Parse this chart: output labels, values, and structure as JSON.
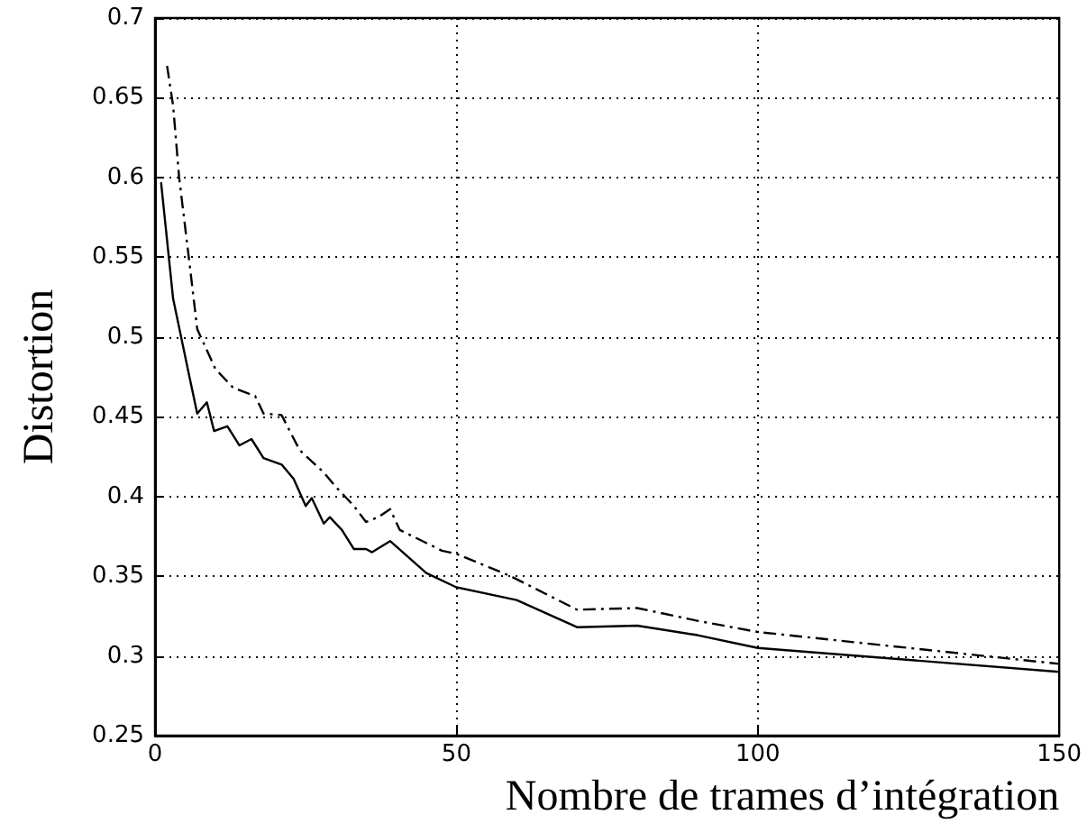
{
  "chart_data": {
    "type": "line",
    "xlabel": "Nombre de trames d’intégration",
    "ylabel": "Distortion",
    "xlim": [
      0,
      150
    ],
    "xticks": [
      0,
      50,
      100,
      150
    ],
    "ylim": [
      0.25,
      0.7
    ],
    "yticks": [
      0.25,
      0.3,
      0.35,
      0.4,
      0.45,
      0.5,
      0.55,
      0.6,
      0.65,
      0.7
    ],
    "grid": true,
    "marker": "none",
    "series": [
      {
        "color": "#000000",
        "line_style": "solid",
        "x": [
          1,
          3,
          5.6,
          7,
          8.6,
          9.8,
          12,
          14,
          16,
          18,
          21,
          23,
          25,
          26,
          28,
          29,
          31,
          33,
          35,
          36,
          39,
          45,
          50,
          60,
          70,
          80,
          90,
          100,
          150
        ],
        "values": [
          0.597,
          0.524,
          0.477,
          0.452,
          0.459,
          0.441,
          0.444,
          0.432,
          0.436,
          0.424,
          0.42,
          0.411,
          0.394,
          0.399,
          0.383,
          0.387,
          0.379,
          0.367,
          0.367,
          0.365,
          0.372,
          0.352,
          0.343,
          0.335,
          0.318,
          0.319,
          0.313,
          0.305,
          0.29
        ]
      },
      {
        "color": "#000000",
        "line_style": "dashed",
        "x": [
          2,
          3,
          4,
          5.6,
          7,
          10,
          13,
          16.6,
          18,
          21,
          24,
          28,
          30,
          33,
          35,
          37,
          39,
          40.6,
          47.6,
          50,
          59,
          70,
          80,
          90,
          100,
          150
        ],
        "values": [
          0.67,
          0.645,
          0.6,
          0.55,
          0.505,
          0.48,
          0.468,
          0.463,
          0.452,
          0.451,
          0.429,
          0.415,
          0.406,
          0.394,
          0.384,
          0.387,
          0.392,
          0.379,
          0.366,
          0.364,
          0.35,
          0.329,
          0.33,
          0.322,
          0.315,
          0.295
        ]
      }
    ]
  }
}
